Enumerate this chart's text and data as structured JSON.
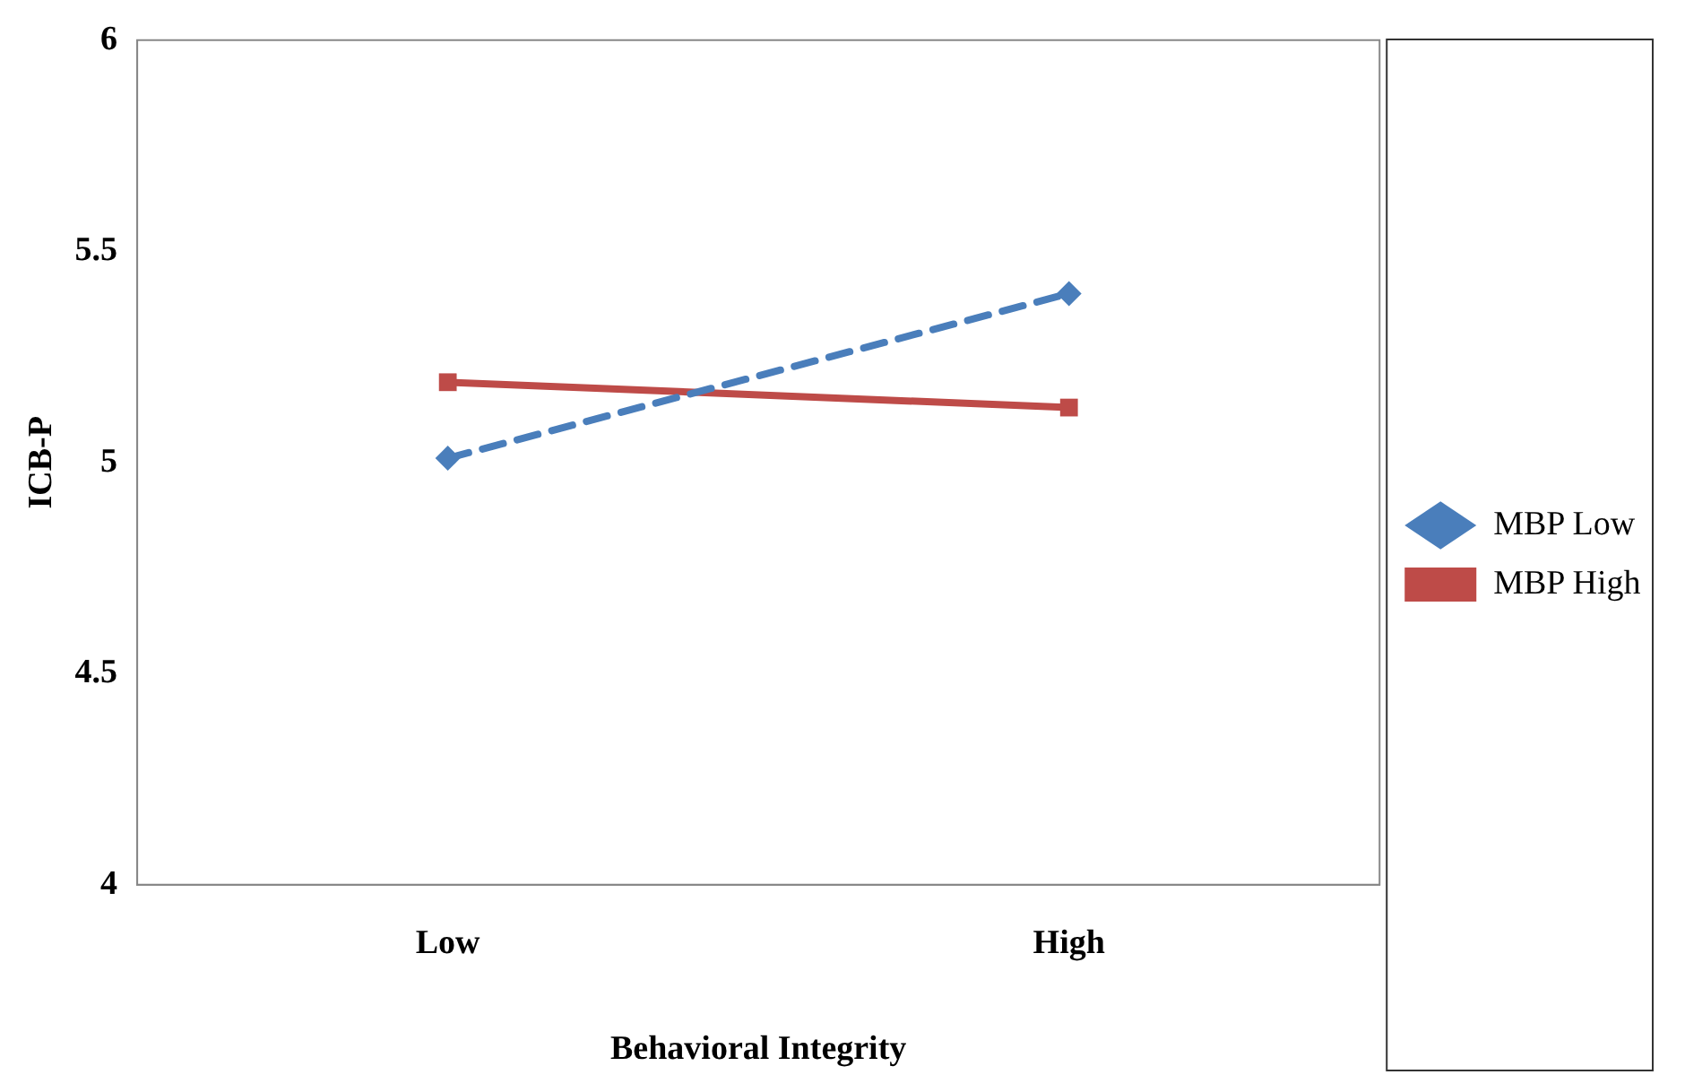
{
  "chart_data": {
    "type": "line",
    "xlabel": "Behavioral Integrity",
    "ylabel": "ICB-P",
    "categories": [
      "Low",
      "High"
    ],
    "series": [
      {
        "name": "MBP Low",
        "color": "#4a7ebb",
        "values": [
          5.01,
          5.4
        ],
        "marker": "diamond",
        "line_style": "dashed"
      },
      {
        "name": "MBP High",
        "color": "#be4b48",
        "values": [
          5.19,
          5.13
        ],
        "marker": "square",
        "line_style": "solid"
      }
    ],
    "ylim": [
      4,
      6
    ],
    "yticks": [
      4,
      4.5,
      5,
      5.5,
      6
    ],
    "grid": false,
    "legend": "right"
  }
}
